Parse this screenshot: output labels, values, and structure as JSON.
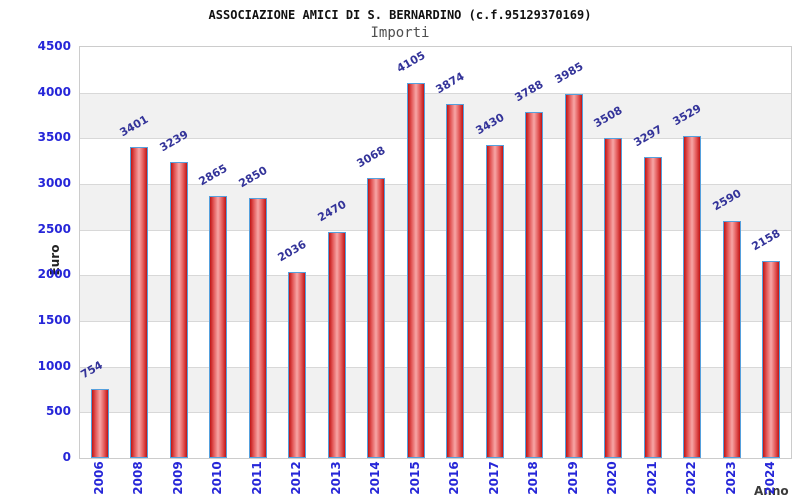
{
  "header": {
    "title": "ASSOCIAZIONE AMICI DI S. BERNARDINO (c.f.95129370169)",
    "subtitle": "Importi"
  },
  "chart_data": {
    "type": "bar",
    "title": "ASSOCIAZIONE AMICI DI S. BERNARDINO (c.f.95129370169)",
    "subtitle": "Importi",
    "xlabel": "Anno",
    "ylabel": "Euro",
    "categories": [
      "2006",
      "2008",
      "2009",
      "2010",
      "2011",
      "2012",
      "2013",
      "2014",
      "2015",
      "2016",
      "2017",
      "2018",
      "2019",
      "2020",
      "2021",
      "2022",
      "2023",
      "2024"
    ],
    "values": [
      754,
      3401,
      3239,
      2865,
      2850,
      2036,
      2470,
      3068,
      4105,
      3874,
      3430,
      3788,
      3985,
      3508,
      3297,
      3529,
      2590,
      2158
    ],
    "ylim": [
      0,
      4500
    ],
    "yticks": [
      0,
      500,
      1000,
      1500,
      2000,
      2500,
      3000,
      3500,
      4000,
      4500
    ],
    "grid": "horizontal-bands",
    "legend": "none",
    "value_labels": "above-bars-rotated",
    "colors": {
      "bar_edge": "#c01515",
      "bar_shade": "#e25555",
      "bar_mid": "#f7a6a6",
      "bar_border": "#55a0dd",
      "axis_text": "#2626d8",
      "value_label": "#333399",
      "band": "#f1f1f1",
      "band_alt": "#ffffff",
      "grid_line": "#d8d8d8",
      "plot_border": "#cccccc",
      "title": "#111111",
      "subtitle": "#4f4f4f",
      "axis_title": "#2e2e2e"
    }
  }
}
